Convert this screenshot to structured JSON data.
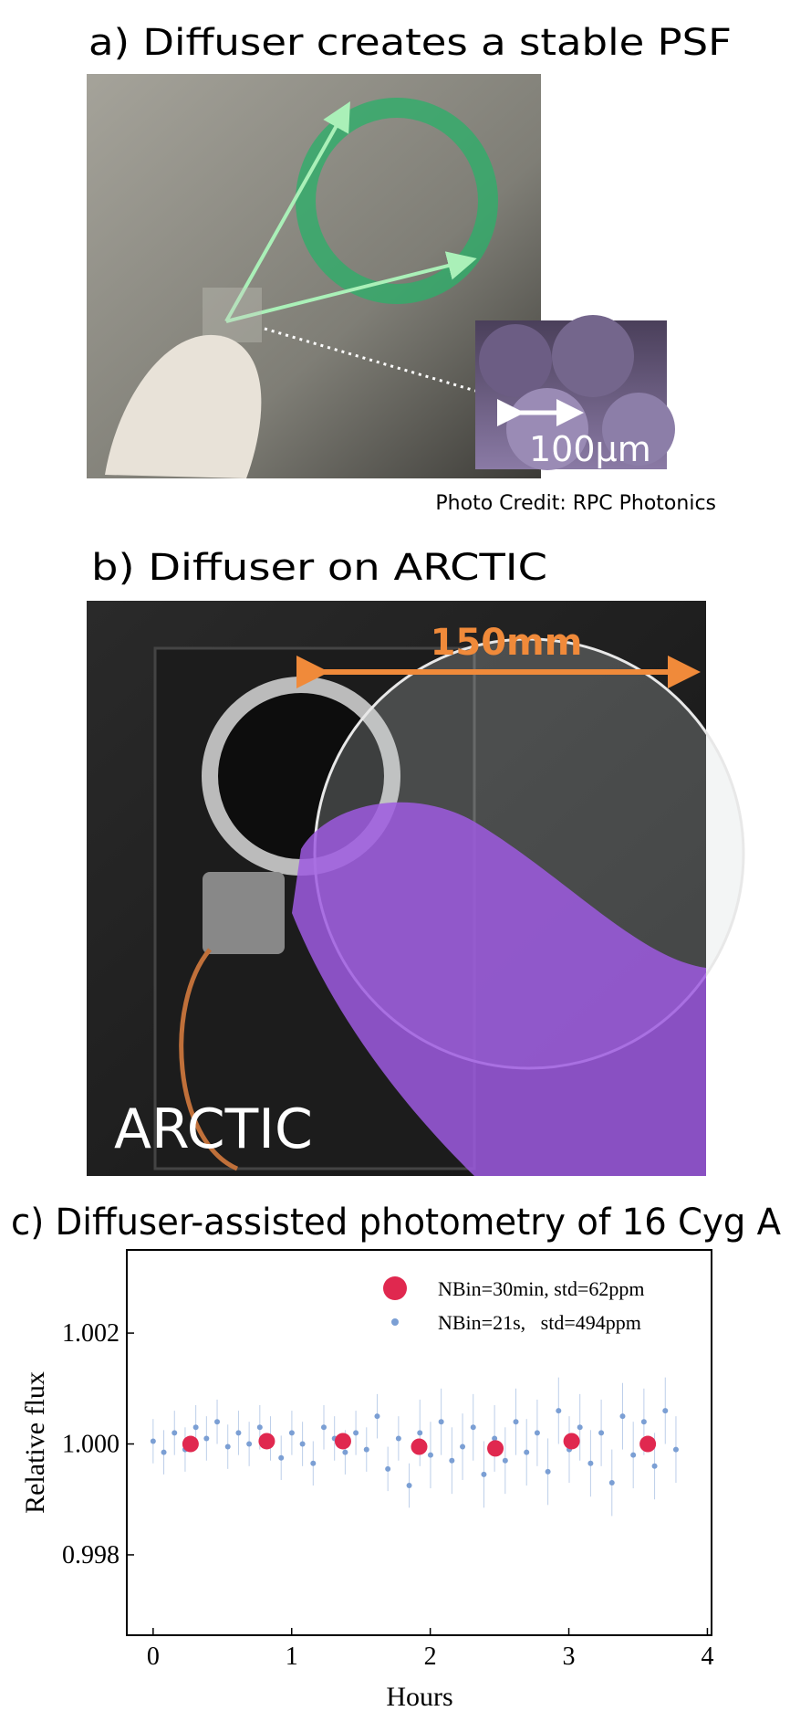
{
  "panel_a": {
    "title": "a) Diffuser creates a stable PSF",
    "scale_label": "100μm",
    "credit": "Photo Credit: RPC Photonics"
  },
  "panel_b": {
    "title": "b) Diffuser on ARCTIC",
    "scale_label": "150mm",
    "instrument_label": "ARCTIC"
  },
  "chart_data": {
    "type": "scatter",
    "title": "c) Diffuser-assisted photometry of 16 Cyg A",
    "x_label": "Hours",
    "y_label": "Relative flux",
    "xlim": [
      -0.19,
      4.03
    ],
    "ylim": [
      0.99655,
      1.0035
    ],
    "xticks": [
      0,
      1,
      2,
      3,
      4
    ],
    "yticks": [
      0.998,
      {
        "value": 1,
        "label": "1.000"
      },
      1.002
    ],
    "legend": "upper right",
    "series": [
      {
        "name": "NBin=21s,   std=494ppm",
        "color": "#7b9fd4",
        "x": [
          0,
          0.077,
          0.154,
          0.231,
          0.308,
          0.385,
          0.462,
          0.539,
          0.616,
          0.693,
          0.77,
          0.847,
          0.924,
          1.001,
          1.078,
          1.155,
          1.232,
          1.309,
          1.386,
          1.463,
          1.54,
          1.617,
          1.694,
          1.771,
          1.848,
          1.925,
          2.002,
          2.079,
          2.156,
          2.233,
          2.31,
          2.387,
          2.464,
          2.541,
          2.618,
          2.695,
          2.772,
          2.849,
          2.926,
          3.003,
          3.08,
          3.157,
          3.234,
          3.311,
          3.388,
          3.465,
          3.542,
          3.619,
          3.696,
          3.773
        ],
        "values": [
          1.00005,
          0.99985,
          1.0002,
          0.9999,
          1.0003,
          1.0001,
          1.0004,
          0.99995,
          1.0002,
          1.0,
          1.0003,
          1.0001,
          0.99975,
          1.0002,
          1.0,
          0.99965,
          1.0003,
          1.0001,
          0.99985,
          1.0002,
          0.9999,
          1.0005,
          0.99955,
          1.0001,
          0.99925,
          1.0002,
          0.9998,
          1.0004,
          0.9997,
          0.99995,
          1.0003,
          0.99945,
          1.0001,
          0.9997,
          1.0004,
          0.99985,
          1.0002,
          0.9995,
          1.0006,
          0.9999,
          1.0003,
          0.99965,
          1.0002,
          0.9993,
          1.0005,
          0.9998,
          1.0004,
          0.9996,
          1.0006,
          0.9999
        ],
        "errors": [
          0.0004,
          0.0004,
          0.0004,
          0.0004,
          0.0004,
          0.0004,
          0.0004,
          0.0004,
          0.0004,
          0.0004,
          0.0004,
          0.0004,
          0.0004,
          0.0004,
          0.0004,
          0.0004,
          0.0004,
          0.0004,
          0.0004,
          0.0004,
          0.0004,
          0.0004,
          0.0004,
          0.0004,
          0.0004,
          0.0006,
          0.0006,
          0.0006,
          0.0006,
          0.0006,
          0.0006,
          0.0006,
          0.0006,
          0.0006,
          0.0006,
          0.0006,
          0.0006,
          0.0006,
          0.0006,
          0.0006,
          0.0006,
          0.0006,
          0.0006,
          0.0006,
          0.0006,
          0.0006,
          0.0006,
          0.0006,
          0.0006,
          0.0006
        ]
      },
      {
        "name": "NBin=30min, std=62ppm",
        "color": "#e0284f",
        "x": [
          0.27,
          0.82,
          1.37,
          1.92,
          2.47,
          3.02,
          3.57
        ],
        "values": [
          1.0,
          1.00005,
          1.00005,
          0.99995,
          0.99992,
          1.00005,
          1.0
        ]
      }
    ]
  }
}
